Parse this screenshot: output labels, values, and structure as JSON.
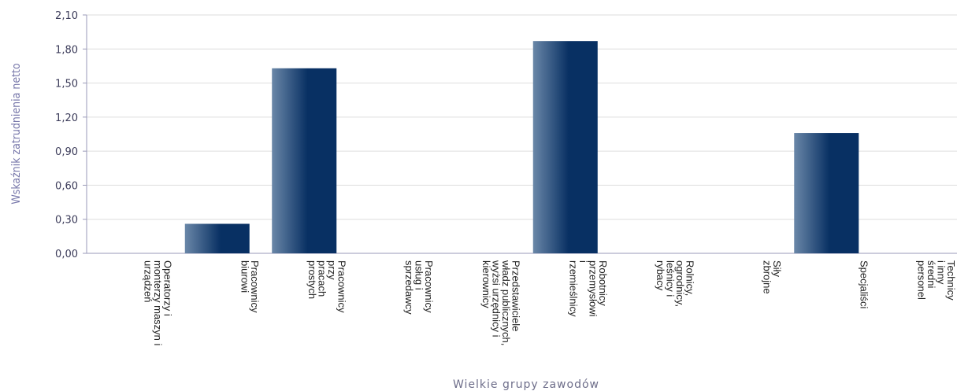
{
  "chart_data": {
    "type": "bar",
    "xlabel": "Wielkie grupy zawodów",
    "ylabel": "Wskaźnik zatrudnienia netto",
    "ylim": [
      0,
      2.1
    ],
    "yticks": [
      "0,00",
      "0,30",
      "0,60",
      "0,90",
      "1,20",
      "1,50",
      "1,80",
      "2,10"
    ],
    "grid": true,
    "categories": [
      [
        "Operatorzy i",
        "monterzy maszyn i",
        "urządzeń"
      ],
      [
        "Pracownicy",
        "biurowi"
      ],
      [
        "Pracownicy",
        "przy",
        "pracach",
        "prostych"
      ],
      [
        "Pracownicy",
        "usług i",
        "sprzedawcy"
      ],
      [
        "Przedstawiciele",
        "władz publicznych,",
        "wyżsi urzędnicy i",
        "kierownicy"
      ],
      [
        "Robotnicy",
        "przemysłowi",
        "i",
        "rzemieślnicy"
      ],
      [
        "Rolnicy,",
        "ogrodnicy,",
        "leśnicy i",
        "rybacy"
      ],
      [
        "Siły",
        "zbrojne"
      ],
      [
        "Specjaliści"
      ],
      [
        "Technicy",
        "i inny",
        "średni",
        "personel"
      ]
    ],
    "values": [
      0,
      0.26,
      1.63,
      0,
      0,
      1.87,
      0,
      0,
      1.06,
      0
    ],
    "colors": {
      "bar_light": "#6a87a8",
      "bar_dark": "#083063",
      "grid": "#dddddd",
      "axis": "#9a9ab8"
    }
  }
}
